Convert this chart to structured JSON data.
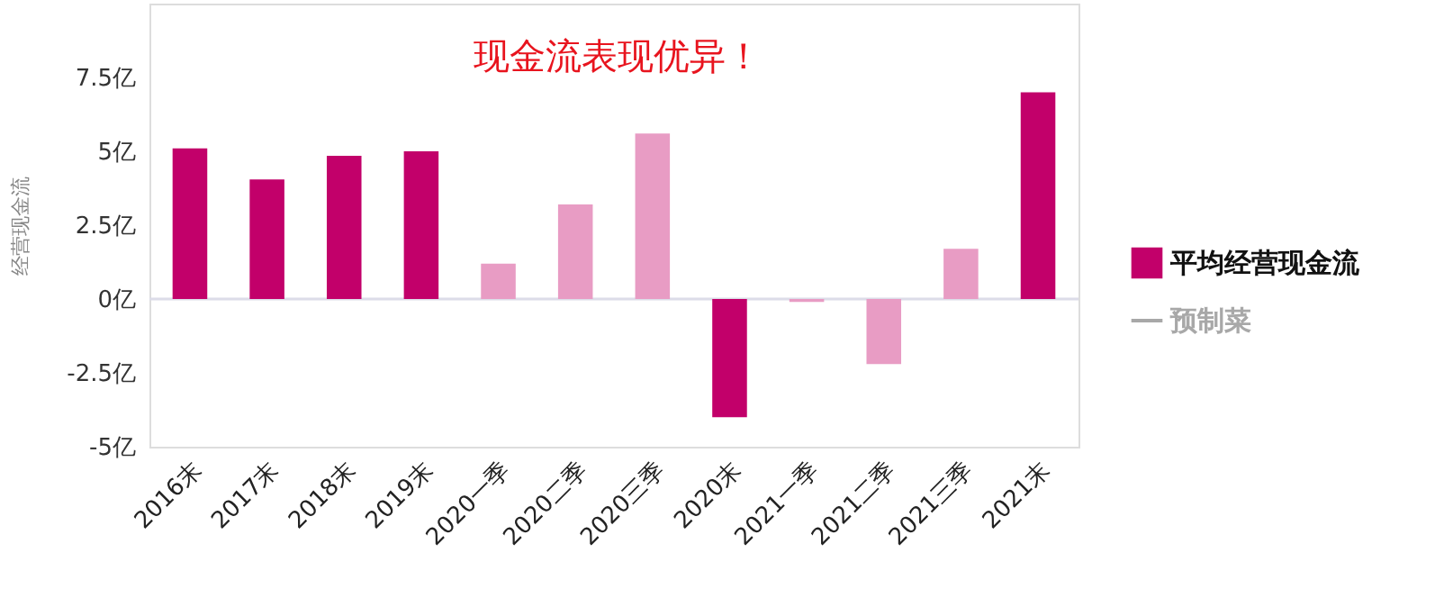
{
  "chart_data": {
    "type": "bar",
    "annotations": [
      "现金流表现优异！"
    ],
    "ylabel": "经营现金流",
    "categories": [
      "2016末",
      "2017末",
      "2018末",
      "2019末",
      "2020一季",
      "2020二季",
      "2020三季",
      "2020末",
      "2021一季",
      "2021二季",
      "2021三季",
      "2021末"
    ],
    "series": [
      {
        "name": "平均经营现金流",
        "color": "#c2006a",
        "colors": [
          "#c2006a",
          "#c2006a",
          "#c2006a",
          "#c2006a",
          "#e89cc4",
          "#e89cc4",
          "#e89cc4",
          "#c2006a",
          "#e89cc4",
          "#e89cc4",
          "#e89cc4",
          "#c2006a"
        ],
        "values": [
          5.1,
          4.05,
          4.85,
          5.0,
          1.2,
          3.2,
          5.6,
          -4.0,
          -0.1,
          -2.2,
          1.7,
          7.0
        ]
      },
      {
        "name": "预制菜",
        "type": "line",
        "color": "#a8a8a8",
        "values": [
          null,
          null,
          null,
          null,
          null,
          null,
          null,
          null,
          null,
          null,
          null,
          null
        ]
      }
    ],
    "ylim": [
      -5,
      10
    ],
    "yticks": [
      {
        "value": -5,
        "label": "-5亿"
      },
      {
        "value": -2.5,
        "label": "-2.5亿"
      },
      {
        "value": 0,
        "label": "0亿"
      },
      {
        "value": 2.5,
        "label": "2.5亿"
      },
      {
        "value": 5,
        "label": "5亿"
      },
      {
        "value": 7.5,
        "label": "7.5亿"
      }
    ],
    "ref_lines": [
      {
        "axis": "y",
        "value": 0,
        "color": "#dcdce8"
      }
    ],
    "grid": false,
    "legend": "right"
  }
}
